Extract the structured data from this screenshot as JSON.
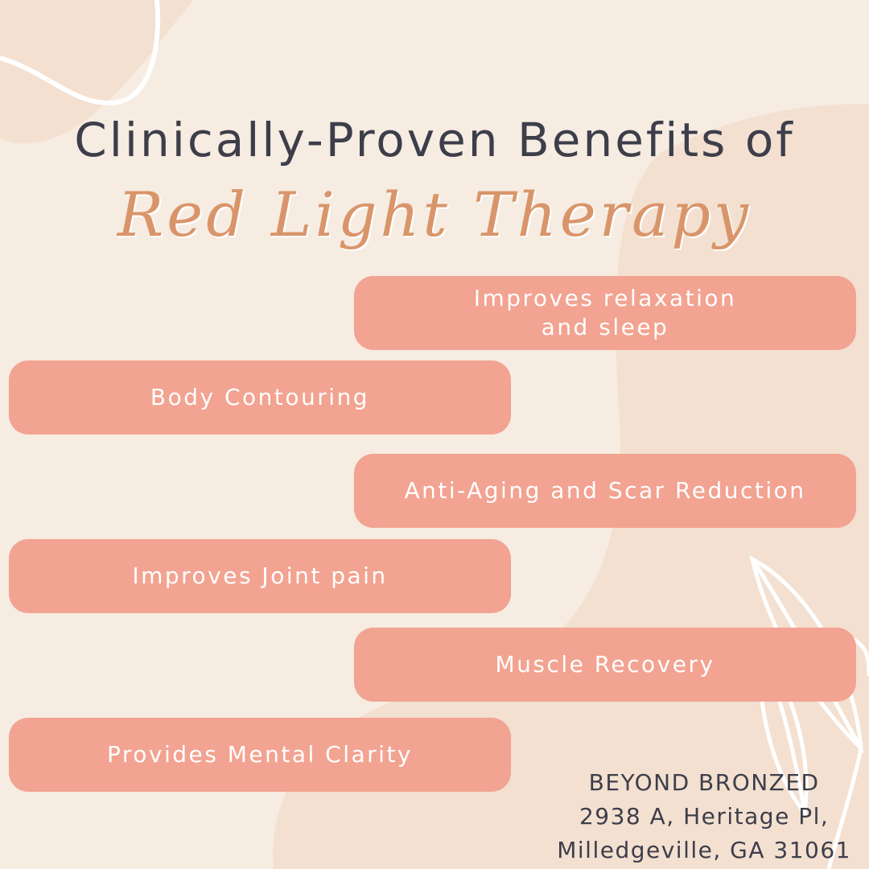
{
  "colors": {
    "background": "#f6ece2",
    "blob": "#f3e0d0",
    "pill": "#f2a391",
    "title": "#3d3e4a",
    "script": "#d9956a"
  },
  "header": {
    "title": "Clinically-Proven Benefits of",
    "subtitle": "Red Light Therapy"
  },
  "benefits": [
    {
      "label": "Improves relaxation and sleep",
      "side": "right"
    },
    {
      "label": "Body Contouring",
      "side": "left"
    },
    {
      "label": "Anti-Aging and Scar Reduction",
      "side": "right"
    },
    {
      "label": "Improves Joint pain",
      "side": "left"
    },
    {
      "label": "Muscle Recovery",
      "side": "right"
    },
    {
      "label": "Provides Mental Clarity",
      "side": "left"
    }
  ],
  "business": {
    "name": "BEYOND BRONZED",
    "address_line1": "2938 A, Heritage Pl,",
    "address_line2": "Milledgeville, GA 31061"
  },
  "decor": {
    "icons": [
      "leaf-outline-icon",
      "wave-line-icon"
    ]
  }
}
